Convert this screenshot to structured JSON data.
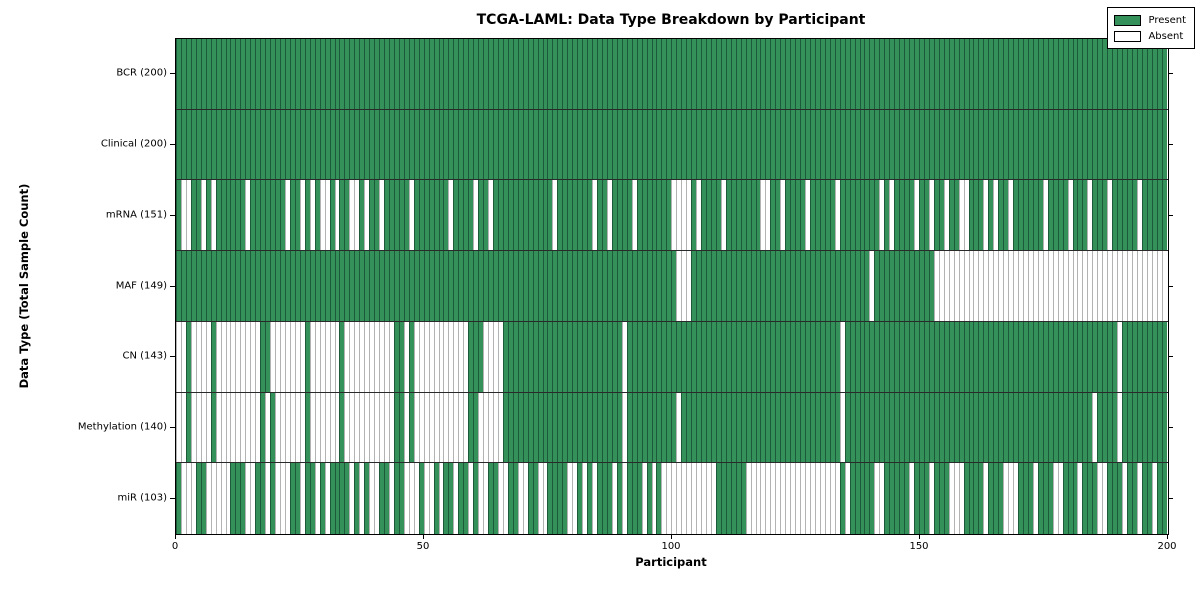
{
  "figure": {
    "title": "TCGA-LAML: Data Type Breakdown by Participant",
    "xlabel": "Participant",
    "ylabel": "Data Type (Total Sample Count)"
  },
  "legend": {
    "items": [
      {
        "label": "Present",
        "color": "#339159"
      },
      {
        "label": "Absent",
        "color": "#ffffff"
      }
    ]
  },
  "chart_data": {
    "type": "heatmap",
    "title": "TCGA-LAML: Data Type Breakdown by Participant",
    "xlabel": "Participant",
    "ylabel": "Data Type (Total Sample Count)",
    "legend": [
      "Present",
      "Absent"
    ],
    "legend_position": "upper right",
    "grid": false,
    "n_participants": 200,
    "x_range": [
      0,
      200
    ],
    "xticks": [
      0,
      50,
      100,
      150,
      200
    ],
    "colors": {
      "present_fill": "#339159",
      "present_edge": "#1d5a39",
      "absent_fill": "#ffffff",
      "absent_edge": "#b3b3b3",
      "row_separator": "#2a2a2a",
      "plot_border": "#000000"
    },
    "rows": [
      {
        "data_type": "BCR",
        "label": "BCR (200)",
        "present_count": 200,
        "absent_count": 0,
        "mode": "absent",
        "ranges": []
      },
      {
        "data_type": "Clinical",
        "label": "Clinical (200)",
        "present_count": 200,
        "absent_count": 0,
        "mode": "absent",
        "ranges": []
      },
      {
        "data_type": "mRNA",
        "label": "mRNA (151)",
        "present_count": 151,
        "absent_count": 49,
        "mode": "absent",
        "ranges": [
          [
            1,
            2
          ],
          [
            5,
            5
          ],
          [
            7,
            7
          ],
          [
            14,
            14
          ],
          [
            22,
            22
          ],
          [
            25,
            25
          ],
          [
            27,
            27
          ],
          [
            29,
            30
          ],
          [
            32,
            32
          ],
          [
            35,
            36
          ],
          [
            38,
            38
          ],
          [
            41,
            41
          ],
          [
            47,
            47
          ],
          [
            55,
            55
          ],
          [
            60,
            60
          ],
          [
            63,
            63
          ],
          [
            76,
            76
          ],
          [
            84,
            84
          ],
          [
            87,
            87
          ],
          [
            92,
            92
          ],
          [
            100,
            103
          ],
          [
            105,
            105
          ],
          [
            110,
            110
          ],
          [
            118,
            119
          ],
          [
            122,
            122
          ],
          [
            127,
            127
          ],
          [
            133,
            133
          ],
          [
            142,
            142
          ],
          [
            144,
            144
          ],
          [
            149,
            149
          ],
          [
            152,
            152
          ],
          [
            155,
            155
          ],
          [
            158,
            159
          ],
          [
            163,
            163
          ],
          [
            165,
            165
          ],
          [
            168,
            168
          ],
          [
            175,
            175
          ],
          [
            180,
            180
          ],
          [
            184,
            184
          ],
          [
            188,
            188
          ],
          [
            194,
            194
          ]
        ]
      },
      {
        "data_type": "MAF",
        "label": "MAF (149)",
        "present_count": 149,
        "absent_count": 51,
        "mode": "absent",
        "ranges": [
          [
            101,
            103
          ],
          [
            140,
            140
          ],
          [
            153,
            199
          ]
        ]
      },
      {
        "data_type": "CN",
        "label": "CN (143)",
        "present_count": 143,
        "absent_count": 57,
        "mode": "absent",
        "ranges": [
          [
            0,
            1
          ],
          [
            3,
            6
          ],
          [
            8,
            16
          ],
          [
            19,
            25
          ],
          [
            27,
            32
          ],
          [
            34,
            43
          ],
          [
            46,
            46
          ],
          [
            48,
            58
          ],
          [
            62,
            65
          ],
          [
            90,
            90
          ],
          [
            134,
            134
          ],
          [
            190,
            190
          ]
        ]
      },
      {
        "data_type": "Methylation",
        "label": "Methylation (140)",
        "present_count": 140,
        "absent_count": 60,
        "mode": "absent",
        "ranges": [
          [
            0,
            1
          ],
          [
            3,
            6
          ],
          [
            8,
            16
          ],
          [
            18,
            18
          ],
          [
            20,
            25
          ],
          [
            27,
            32
          ],
          [
            34,
            43
          ],
          [
            46,
            46
          ],
          [
            48,
            58
          ],
          [
            61,
            65
          ],
          [
            90,
            90
          ],
          [
            101,
            101
          ],
          [
            134,
            134
          ],
          [
            185,
            185
          ],
          [
            190,
            190
          ]
        ]
      },
      {
        "data_type": "miR",
        "label": "miR (103)",
        "present_count": 103,
        "absent_count": 97,
        "mode": "present",
        "ranges": [
          [
            0,
            0
          ],
          [
            4,
            5
          ],
          [
            11,
            13
          ],
          [
            16,
            17
          ],
          [
            19,
            19
          ],
          [
            23,
            24
          ],
          [
            26,
            27
          ],
          [
            29,
            29
          ],
          [
            31,
            34
          ],
          [
            36,
            36
          ],
          [
            38,
            38
          ],
          [
            41,
            42
          ],
          [
            44,
            45
          ],
          [
            49,
            49
          ],
          [
            52,
            52
          ],
          [
            54,
            55
          ],
          [
            57,
            58
          ],
          [
            60,
            60
          ],
          [
            63,
            64
          ],
          [
            67,
            68
          ],
          [
            71,
            72
          ],
          [
            75,
            78
          ],
          [
            81,
            81
          ],
          [
            83,
            83
          ],
          [
            85,
            87
          ],
          [
            89,
            89
          ],
          [
            91,
            93
          ],
          [
            95,
            95
          ],
          [
            97,
            97
          ],
          [
            109,
            114
          ],
          [
            134,
            134
          ],
          [
            136,
            140
          ],
          [
            143,
            147
          ],
          [
            149,
            151
          ],
          [
            153,
            155
          ],
          [
            159,
            162
          ],
          [
            164,
            166
          ],
          [
            170,
            172
          ],
          [
            174,
            176
          ],
          [
            179,
            181
          ],
          [
            183,
            185
          ],
          [
            188,
            190
          ],
          [
            192,
            193
          ],
          [
            195,
            196
          ],
          [
            198,
            199
          ]
        ]
      }
    ]
  }
}
